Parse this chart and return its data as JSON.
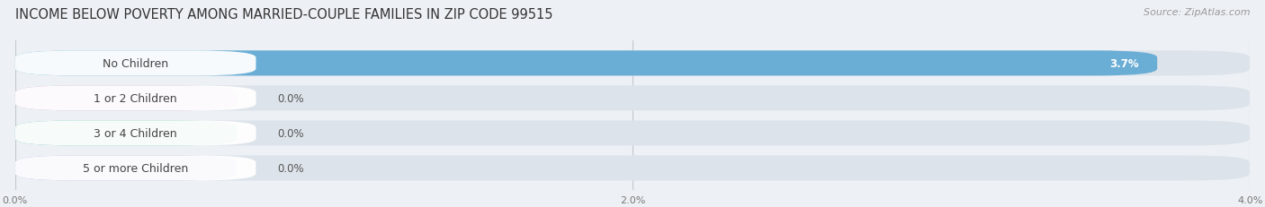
{
  "title": "INCOME BELOW POVERTY AMONG MARRIED-COUPLE FAMILIES IN ZIP CODE 99515",
  "source": "Source: ZipAtlas.com",
  "categories": [
    "No Children",
    "1 or 2 Children",
    "3 or 4 Children",
    "5 or more Children"
  ],
  "values": [
    3.7,
    0.0,
    0.0,
    0.0
  ],
  "bar_colors": [
    "#6aadd5",
    "#c9a8c9",
    "#6dc4b4",
    "#a8aede"
  ],
  "value_labels": [
    "3.7%",
    "0.0%",
    "0.0%",
    "0.0%"
  ],
  "xlim": [
    0,
    4.0
  ],
  "xticks": [
    0.0,
    2.0,
    4.0
  ],
  "xtick_labels": [
    "0.0%",
    "2.0%",
    "4.0%"
  ],
  "background_color": "#edf1f5",
  "bar_background_color": "#dde3ea",
  "title_fontsize": 10.5,
  "source_fontsize": 8,
  "label_fontsize": 9,
  "value_fontsize": 8.5
}
